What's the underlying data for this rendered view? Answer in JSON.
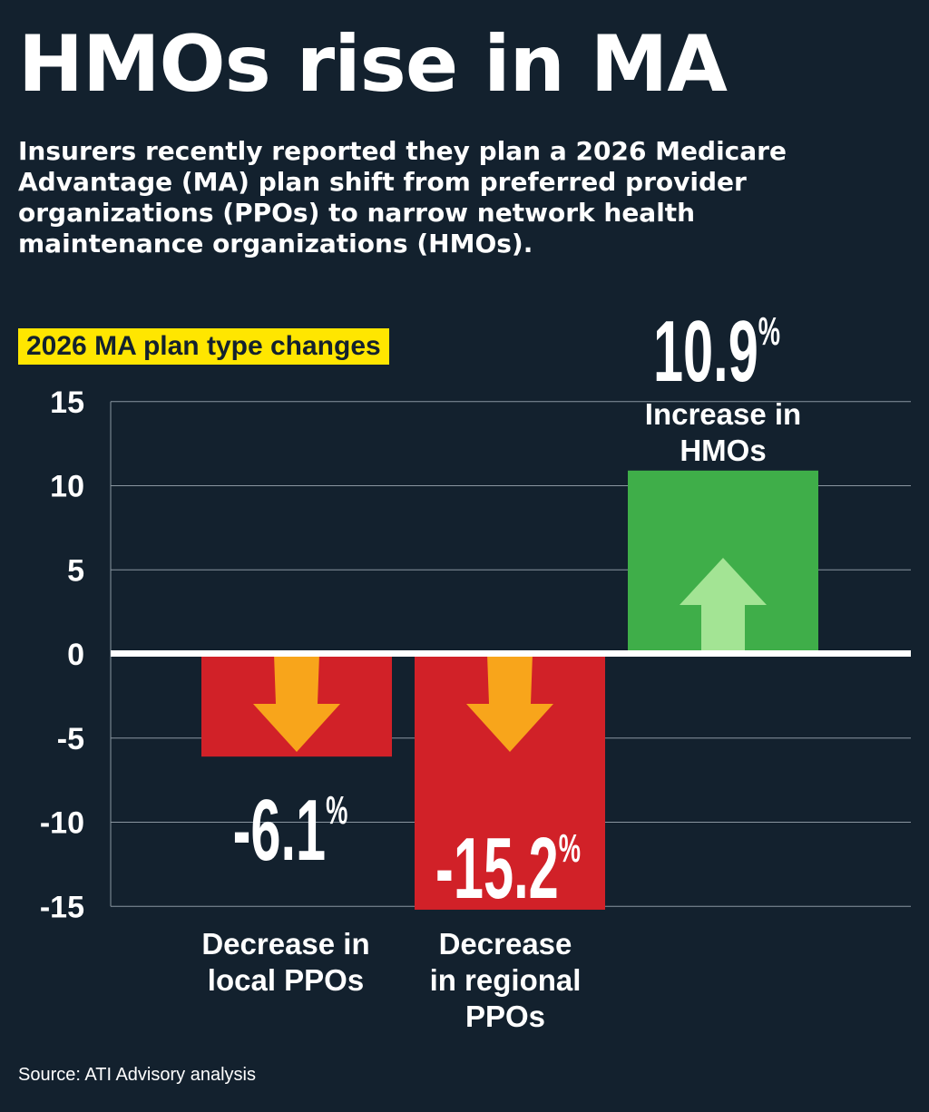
{
  "title": "HMOs rise in MA",
  "subtitle": "Insurers recently reported they plan a 2026 Medicare Advantage (MA) plan shift from preferred provider organizations (PPOs) to narrow network health maintenance organizations (HMOs).",
  "source": "Source: ATI Advisory analysis",
  "colors": {
    "background": "#13212e",
    "negative": "#d12128",
    "positive": "#3fae49",
    "down_arrow": "#f8a51b",
    "up_arrow": "#a3e494",
    "badge": "#ffe600"
  },
  "chart_data": {
    "type": "bar",
    "title": "2026 MA plan type changes",
    "categories": [
      "Decrease in local PPOs",
      "Decrease in regional PPOs",
      "Increase in HMOs"
    ],
    "category_lines": [
      [
        "Decrease in",
        "local PPOs"
      ],
      [
        "Decrease",
        "in regional",
        "PPOs"
      ],
      [
        "Increase in",
        "HMOs"
      ]
    ],
    "values": [
      -6.1,
      -15.2,
      10.9
    ],
    "value_labels": [
      "-6.1",
      "-15.2",
      "10.9"
    ],
    "unit": "%",
    "ylim": [
      -15,
      15
    ],
    "yticks": [
      15,
      10,
      5,
      0,
      -5,
      -10,
      -15
    ],
    "grid": true
  }
}
